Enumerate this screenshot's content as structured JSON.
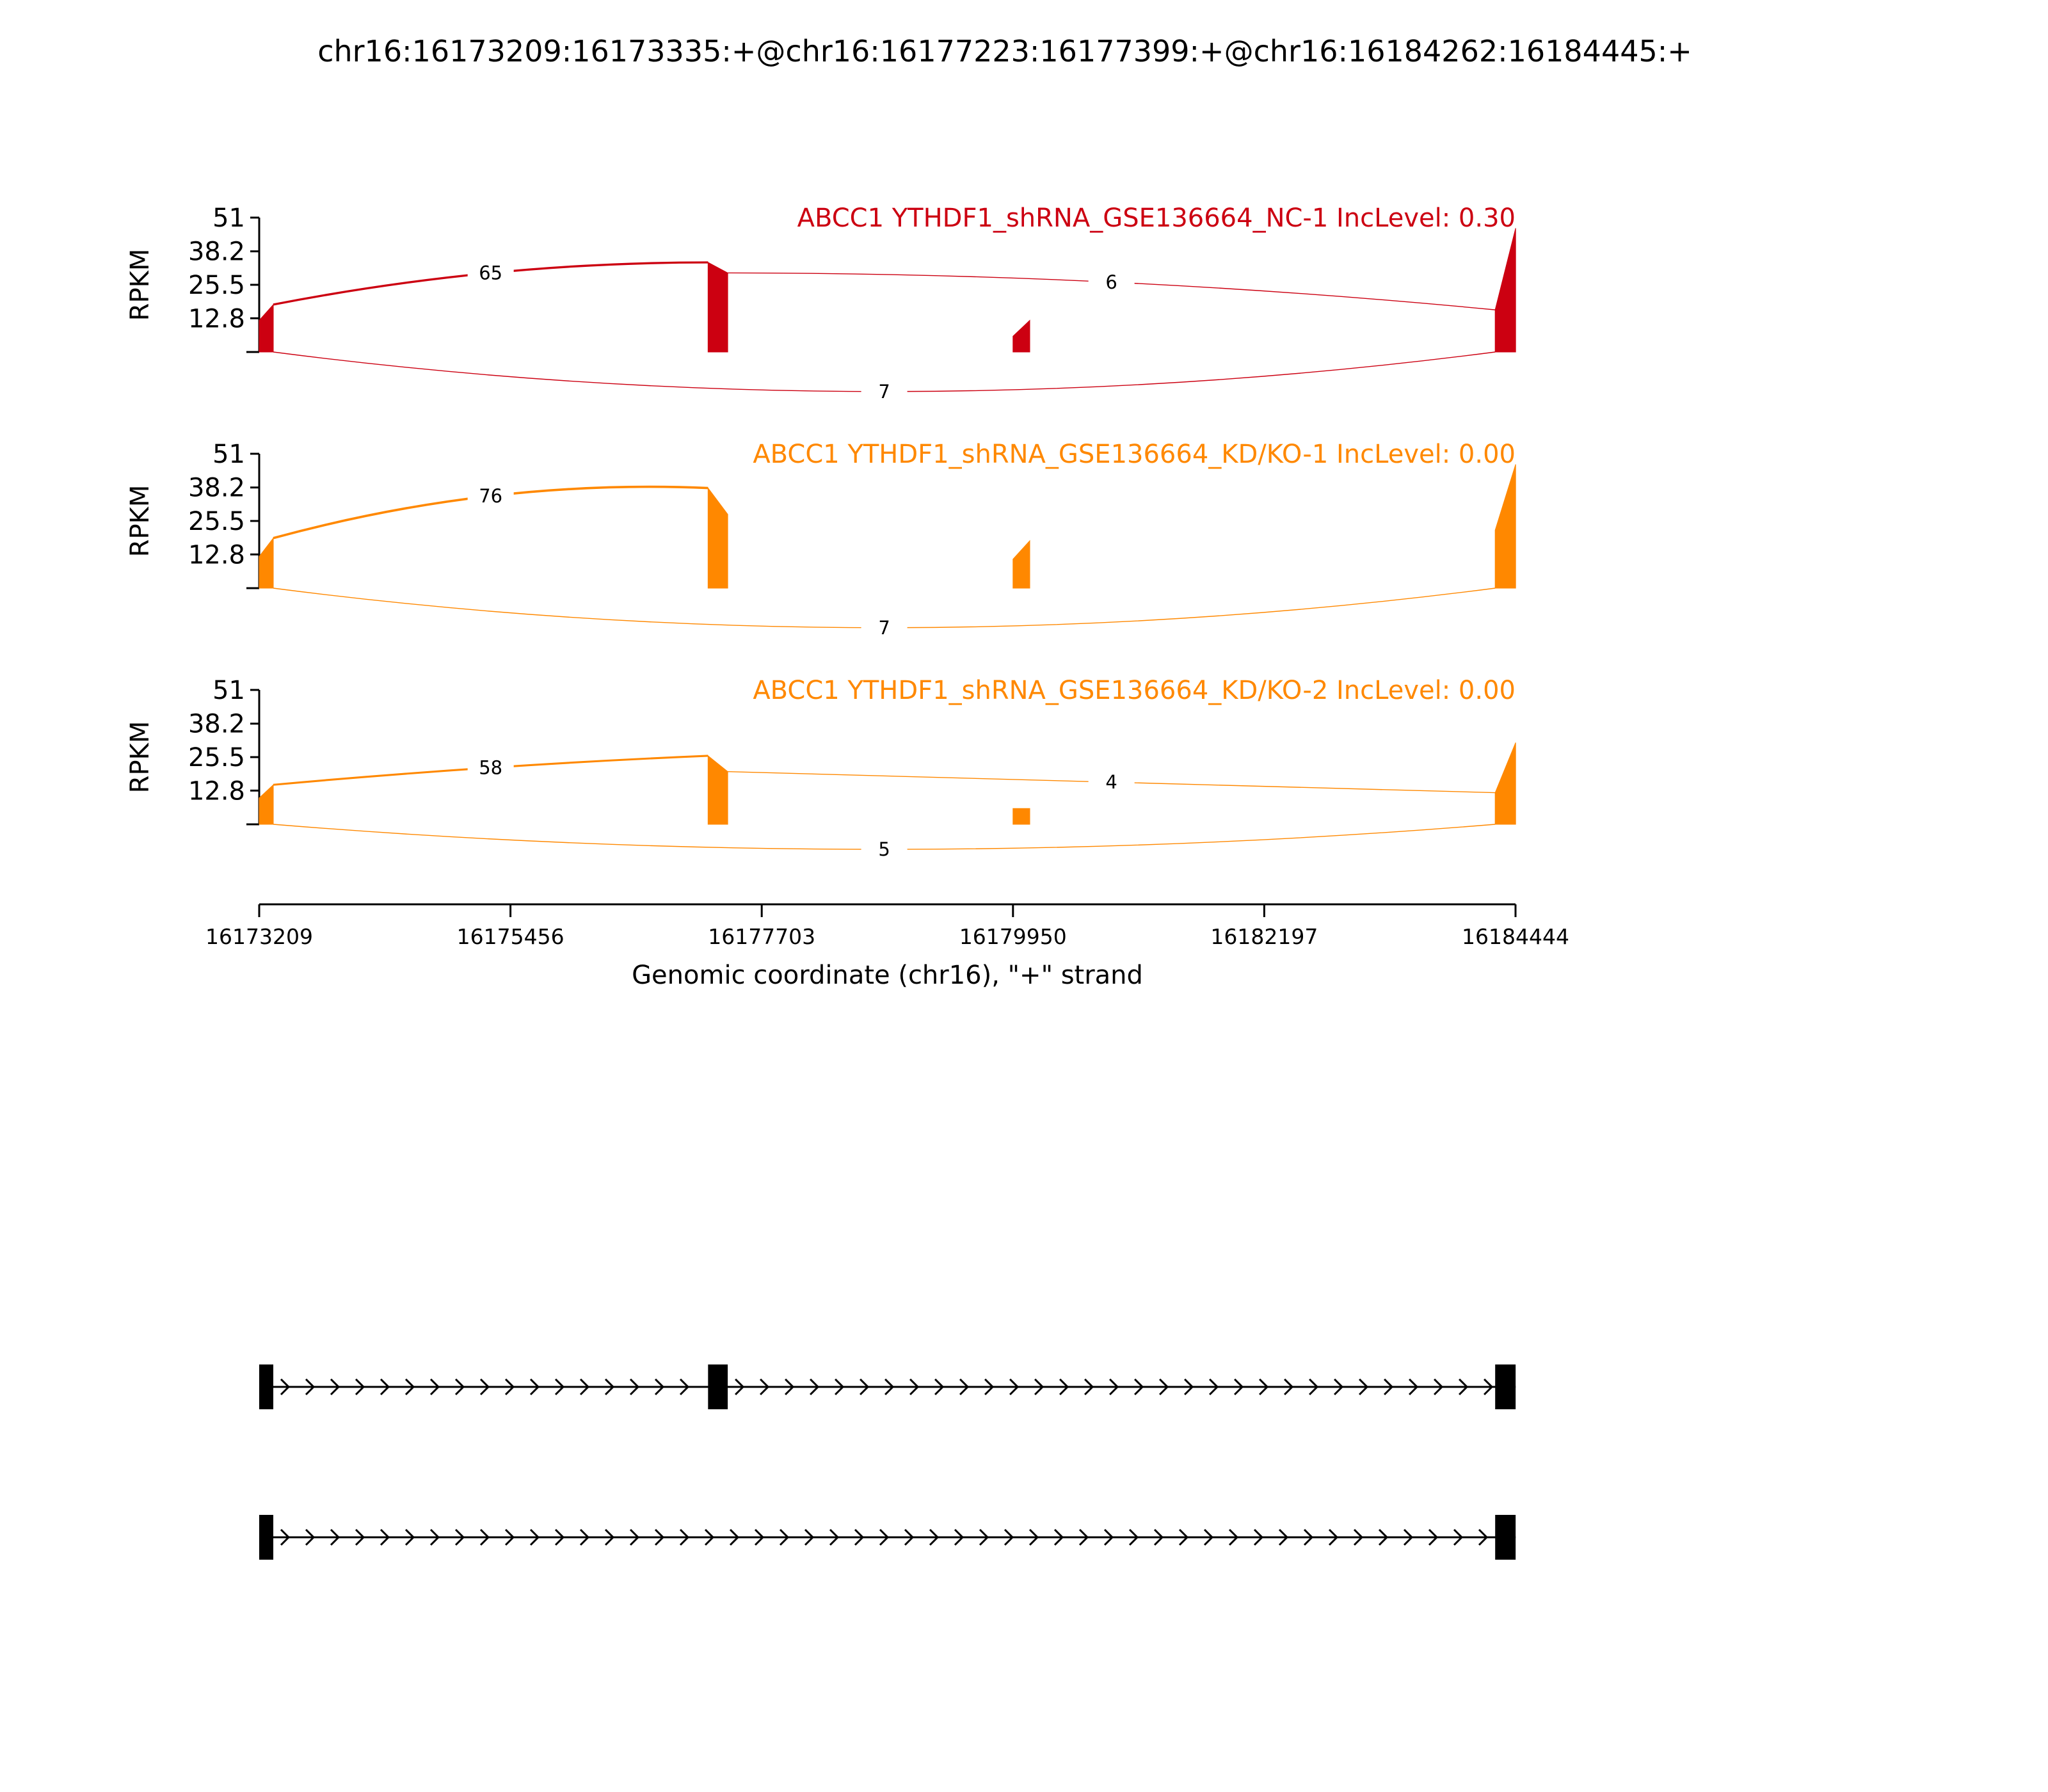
{
  "title": "chr16:16173209:16173335:+@chr16:16177223:16177399:+@chr16:16184262:16184445:+",
  "chart_data": {
    "type": "area",
    "subtype": "sashimi",
    "title": "chr16:16173209:16173335:+@chr16:16177223:16177399:+@chr16:16184262:16184445:+",
    "xlabel": "Genomic coordinate (chr16), \"+\" strand",
    "xlim": [
      16173209,
      16184444
    ],
    "x_ticks": [
      "16173209",
      "16175456",
      "16177703",
      "16179950",
      "16182197",
      "16184444"
    ],
    "x_tick_values": [
      16173209,
      16175456,
      16177703,
      16179950,
      16182197,
      16184444
    ],
    "ylabel": "RPKM",
    "ylim": [
      0,
      51
    ],
    "y_ticks": [
      "12.8",
      "25.5",
      "38.2",
      "51"
    ],
    "y_tick_values": [
      12.8,
      25.5,
      38.2,
      51
    ],
    "grid": false,
    "exons": [
      {
        "start": 16173209,
        "end": 16173335
      },
      {
        "start": 16177223,
        "end": 16177399
      },
      {
        "start": 16179950,
        "end": 16180100
      },
      {
        "start": 16184262,
        "end": 16184445
      }
    ],
    "series": [
      {
        "name": "ABCC1 YTHDF1_shRNA_GSE136664_NC-1 IncLevel: 0.30",
        "color": "#cc0011",
        "coverage": [
          {
            "start": 16173209,
            "end": 16173335,
            "left": 12,
            "right": 18
          },
          {
            "start": 16177223,
            "end": 16177399,
            "left": 34,
            "right": 30
          },
          {
            "start": 16179950,
            "end": 16180100,
            "left": 6,
            "right": 12
          },
          {
            "start": 16184262,
            "end": 16184445,
            "left": 16,
            "right": 47
          }
        ],
        "junctions": [
          {
            "label": "65",
            "start": 16173335,
            "end": 16177223,
            "value": 65,
            "side": "above",
            "peak": 30,
            "width": 2.4
          },
          {
            "label": "6",
            "start": 16177399,
            "end": 16184262,
            "value": 6,
            "side": "above",
            "peak": 26.5,
            "width": 1
          },
          {
            "label": "7",
            "start": 16173335,
            "end": 16184262,
            "value": 7,
            "side": "below",
            "peak": -15,
            "width": 1
          }
        ]
      },
      {
        "name": "ABCC1 YTHDF1_shRNA_GSE136664_KD/KO-1 IncLevel: 0.00",
        "color": "#ff8800",
        "coverage": [
          {
            "start": 16173209,
            "end": 16173335,
            "left": 12,
            "right": 19
          },
          {
            "start": 16177223,
            "end": 16177399,
            "left": 38,
            "right": 28
          },
          {
            "start": 16179950,
            "end": 16180100,
            "left": 11,
            "right": 18
          },
          {
            "start": 16184262,
            "end": 16184445,
            "left": 22,
            "right": 47
          }
        ],
        "junctions": [
          {
            "label": "76",
            "start": 16173335,
            "end": 16177223,
            "value": 76,
            "side": "above",
            "peak": 35,
            "width": 2.6
          },
          {
            "label": "7",
            "start": 16173335,
            "end": 16184262,
            "value": 7,
            "side": "below",
            "peak": -15,
            "width": 1
          }
        ]
      },
      {
        "name": "ABCC1 YTHDF1_shRNA_GSE136664_KD/KO-2 IncLevel: 0.00",
        "color": "#ff8800",
        "coverage": [
          {
            "start": 16173209,
            "end": 16173335,
            "left": 10,
            "right": 15
          },
          {
            "start": 16177223,
            "end": 16177399,
            "left": 26,
            "right": 20
          },
          {
            "start": 16179950,
            "end": 16180100,
            "left": 6,
            "right": 6
          },
          {
            "start": 16184262,
            "end": 16184445,
            "left": 12,
            "right": 31
          }
        ],
        "junctions": [
          {
            "label": "58",
            "start": 16173335,
            "end": 16177223,
            "value": 58,
            "side": "above",
            "peak": 21.5,
            "width": 2.2
          },
          {
            "label": "4",
            "start": 16177399,
            "end": 16184262,
            "value": 4,
            "side": "above",
            "peak": 16,
            "width": 1
          },
          {
            "label": "5",
            "start": 16173335,
            "end": 16184262,
            "value": 5,
            "side": "below",
            "peak": -9.5,
            "width": 1
          }
        ]
      }
    ],
    "isoforms": [
      {
        "exons": [
          [
            16173209,
            16173335
          ],
          [
            16177223,
            16177399
          ],
          [
            16184262,
            16184445
          ]
        ]
      },
      {
        "exons": [
          [
            16173209,
            16173335
          ],
          [
            16184262,
            16184445
          ]
        ]
      }
    ]
  }
}
